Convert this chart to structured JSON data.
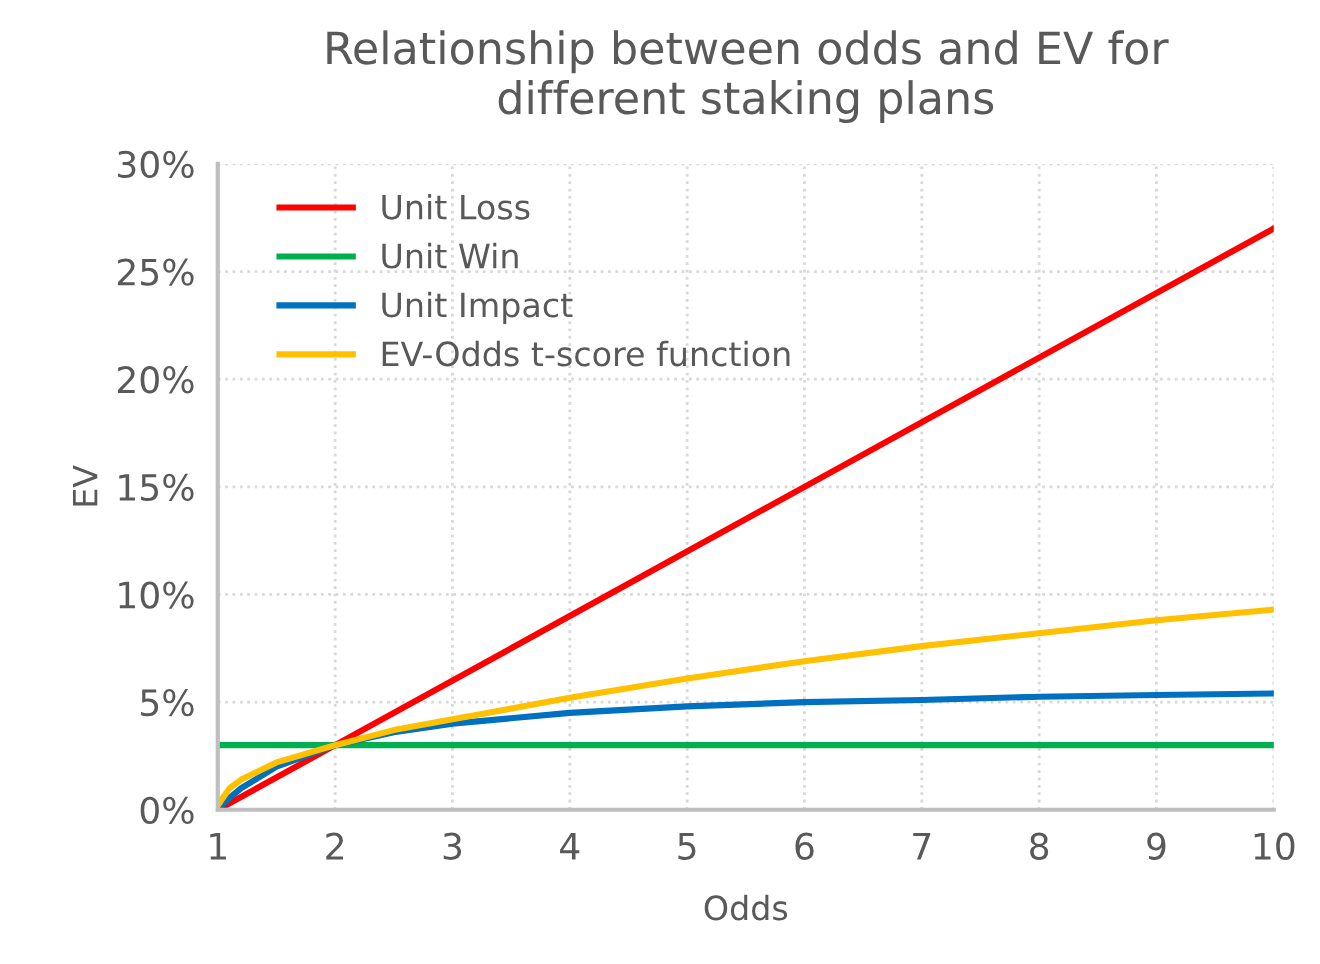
{
  "chart_data": {
    "type": "line",
    "title": "Relationship between odds and EV for\ndifferent staking plans",
    "xlabel": "Odds",
    "ylabel": "EV",
    "xlim": [
      1,
      10
    ],
    "xticks": [
      1,
      2,
      3,
      4,
      5,
      6,
      7,
      8,
      9,
      10
    ],
    "ylim": [
      0,
      30
    ],
    "yticks": [
      {
        "value": 0,
        "label": "0%"
      },
      {
        "value": 5,
        "label": "5%"
      },
      {
        "value": 10,
        "label": "10%"
      },
      {
        "value": 15,
        "label": "15%"
      },
      {
        "value": 20,
        "label": "20%"
      },
      {
        "value": 25,
        "label": "25%"
      },
      {
        "value": 30,
        "label": "30%"
      }
    ],
    "grid": true,
    "legend": "top left",
    "marker": "none",
    "line_style": "solid",
    "series": [
      {
        "name": "Unit Loss",
        "color": "#ff0000",
        "x": [
          1,
          2,
          4,
          6,
          8,
          10
        ],
        "values": [
          0,
          3,
          9,
          15,
          21,
          27
        ]
      },
      {
        "name": "Unit Win",
        "color": "#00b050",
        "x": [
          1,
          10
        ],
        "values": [
          3,
          3
        ]
      },
      {
        "name": "Unit Impact",
        "color": "#0070c0",
        "x": [
          1,
          1.05,
          1.1,
          1.2,
          1.5,
          2,
          2.5,
          3,
          4,
          5,
          6,
          7,
          8,
          9,
          10
        ],
        "values": [
          0,
          0.3,
          0.55,
          1.0,
          2.0,
          3.0,
          3.6,
          4.0,
          4.5,
          4.8,
          5.0,
          5.1,
          5.25,
          5.33,
          5.4
        ]
      },
      {
        "name": "EV-Odds t-score function",
        "color": "#ffc000",
        "x": [
          1,
          1.05,
          1.1,
          1.2,
          1.5,
          2,
          2.5,
          3,
          4,
          5,
          6,
          7,
          8,
          9,
          10
        ],
        "values": [
          0.2,
          0.6,
          1.0,
          1.4,
          2.2,
          3.0,
          3.7,
          4.2,
          5.2,
          6.1,
          6.9,
          7.6,
          8.2,
          8.8,
          9.3
        ]
      }
    ]
  }
}
